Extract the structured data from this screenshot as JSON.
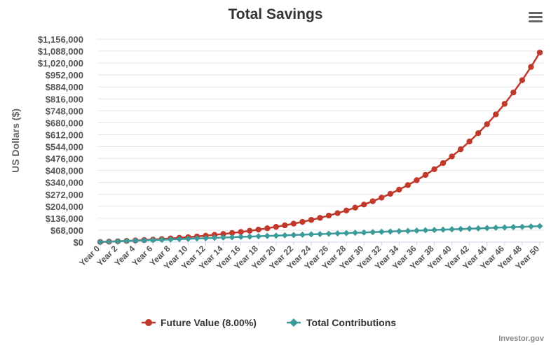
{
  "chart_data": {
    "type": "line",
    "title": "Total Savings",
    "xlabel": "",
    "ylabel": "US Dollars ($)",
    "ylim": [
      0,
      1156000
    ],
    "yticks": [
      0,
      68000,
      136000,
      204000,
      272000,
      340000,
      408000,
      476000,
      544000,
      612000,
      680000,
      748000,
      816000,
      884000,
      952000,
      1020000,
      1088000,
      1156000
    ],
    "ytick_labels": [
      "$0",
      "$68,000",
      "$136,000",
      "$204,000",
      "$272,000",
      "$340,000",
      "$408,000",
      "$476,000",
      "$544,000",
      "$612,000",
      "$680,000",
      "$748,000",
      "$816,000",
      "$884,000",
      "$952,000",
      "$1,020,000",
      "$1,088,000",
      "$1,156,000"
    ],
    "categories": [
      "Year 0",
      "Year 1",
      "Year 2",
      "Year 3",
      "Year 4",
      "Year 5",
      "Year 6",
      "Year 7",
      "Year 8",
      "Year 9",
      "Year 10",
      "Year 11",
      "Year 12",
      "Year 13",
      "Year 14",
      "Year 15",
      "Year 16",
      "Year 17",
      "Year 18",
      "Year 19",
      "Year 20",
      "Year 21",
      "Year 22",
      "Year 23",
      "Year 24",
      "Year 25",
      "Year 26",
      "Year 27",
      "Year 28",
      "Year 29",
      "Year 30",
      "Year 31",
      "Year 32",
      "Year 33",
      "Year 34",
      "Year 35",
      "Year 36",
      "Year 37",
      "Year 38",
      "Year 39",
      "Year 40",
      "Year 41",
      "Year 42",
      "Year 43",
      "Year 44",
      "Year 45",
      "Year 46",
      "Year 47",
      "Year 48",
      "Year 49",
      "Year 50"
    ],
    "xtick_labels": [
      "Year 0",
      "Year 2",
      "Year 4",
      "Year 6",
      "Year 8",
      "Year 10",
      "Year 12",
      "Year 14",
      "Year 16",
      "Year 18",
      "Year 20",
      "Year 22",
      "Year 24",
      "Year 26",
      "Year 28",
      "Year 30",
      "Year 32",
      "Year 34",
      "Year 36",
      "Year 38",
      "Year 40",
      "Year 42",
      "Year 44",
      "Year 46",
      "Year 48",
      "Year 50"
    ],
    "series": [
      {
        "name": "Future Value (8.00%)",
        "color": "#c0392b",
        "marker": "circle",
        "values": [
          1000,
          2880,
          4910,
          7103,
          9471,
          12029,
          14791,
          17775,
          20997,
          24477,
          28235,
          32294,
          36677,
          41411,
          46524,
          52046,
          58010,
          64451,
          71407,
          78920,
          87033,
          95796,
          105260,
          115481,
          126520,
          138442,
          151318,
          165223,
          180241,
          196460,
          213977,
          232895,
          253327,
          275393,
          299224,
          324962,
          352759,
          382779,
          415201,
          450217,
          488034,
          528877,
          572987,
          620626,
          672076,
          727642,
          787653,
          852465,
          922462,
          998059,
          1079704
        ]
      },
      {
        "name": "Total Contributions",
        "color": "#3b9a9a",
        "marker": "diamond",
        "values": [
          1000,
          2800,
          4600,
          6400,
          8200,
          10000,
          11800,
          13600,
          15400,
          17200,
          19000,
          20800,
          22600,
          24400,
          26200,
          28000,
          29800,
          31600,
          33400,
          35200,
          37000,
          38800,
          40600,
          42400,
          44200,
          46000,
          47800,
          49600,
          51400,
          53200,
          55000,
          56800,
          58600,
          60400,
          62200,
          64000,
          65800,
          67600,
          69400,
          71200,
          73000,
          74800,
          76600,
          78400,
          80200,
          82000,
          83800,
          85600,
          87400,
          89200,
          91000
        ]
      }
    ],
    "legend_position": "bottom-center",
    "grid": true
  },
  "credit": "Investor.gov",
  "menu_icon": "hamburger-menu-icon"
}
